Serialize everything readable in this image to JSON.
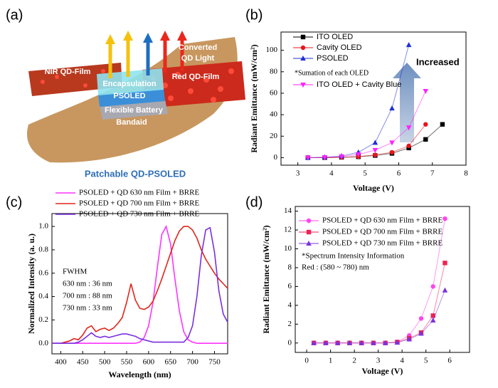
{
  "panel_labels": [
    "(a)",
    "(b)",
    "(c)",
    "(d)"
  ],
  "illustration": {
    "texts": [
      "NIR QD-Film",
      "Encapsulation",
      "PSOLED",
      "Flexible Battery",
      "Bandaid",
      "Red QD-Film",
      "Converted",
      "QD Light"
    ],
    "caption": "Patchable QD-PSOLED"
  },
  "chart_data": [
    {
      "type": "line",
      "xlabel": "Voltage (V)",
      "ylabel": "Radiant Emittance (mW/cm²)",
      "xlim": [
        2.5,
        8
      ],
      "xticks": [
        3,
        4,
        5,
        6,
        7,
        8
      ],
      "ylim": [
        -7,
        117
      ],
      "yticks": [
        0,
        20,
        40,
        60,
        80,
        100
      ],
      "x": [
        3.3,
        3.8,
        4.3,
        4.8,
        5.3,
        5.8,
        6.3,
        6.8,
        7.3
      ],
      "series": [
        {
          "name": "ITO OLED",
          "color": "#000000",
          "marker": "square",
          "values": [
            0,
            0,
            0.3,
            0.8,
            2,
            4,
            9,
            17,
            31
          ]
        },
        {
          "name": "Cavity OLED",
          "color": "#e8141c",
          "marker": "circle",
          "values": [
            0,
            0,
            0.3,
            1,
            2.5,
            5,
            11,
            31,
            null
          ]
        },
        {
          "name": "PSOLED",
          "color": "#1f2fd6",
          "marker": "triangle-up",
          "values": [
            0,
            0.5,
            1.5,
            5,
            14,
            46,
            105,
            null,
            null
          ]
        },
        {
          "name": "ITO OLED + Cavity Blue",
          "color": "#ff22ff",
          "marker": "triangle-down",
          "values": [
            0,
            0.3,
            1,
            3,
            7,
            14,
            28,
            62,
            null
          ]
        }
      ],
      "annotations": [
        "*Sumation of each OLED",
        "Increased"
      ]
    },
    {
      "type": "line",
      "xlabel": "Wavelength (nm)",
      "ylabel": "Normalized Intensity (a. u.)",
      "xlim": [
        380,
        780
      ],
      "xticks": [
        400,
        450,
        500,
        550,
        600,
        650,
        700,
        750
      ],
      "ylim": [
        -0.09,
        1.11
      ],
      "yticks": [
        {
          "value": 0,
          "label": "0.0"
        },
        0.2,
        0.4,
        0.6,
        0.8,
        {
          "value": 1,
          "label": "1.0"
        }
      ],
      "x": [
        380,
        390,
        400,
        410,
        420,
        430,
        440,
        450,
        460,
        470,
        480,
        490,
        500,
        510,
        520,
        530,
        540,
        550,
        560,
        570,
        580,
        590,
        600,
        610,
        620,
        630,
        640,
        650,
        660,
        670,
        680,
        690,
        700,
        710,
        720,
        730,
        740,
        750,
        760,
        770,
        780
      ],
      "series": [
        {
          "name": "PSOLED + QD 630 nm Film + BRRE",
          "color": "#ff33ff",
          "values": [
            0,
            0,
            0,
            0,
            0,
            0,
            0,
            0,
            0,
            0,
            0,
            0,
            0,
            0,
            0,
            0,
            0,
            0,
            0,
            0,
            0.01,
            0.05,
            0.15,
            0.35,
            0.65,
            0.93,
            1.0,
            0.85,
            0.55,
            0.28,
            0.1,
            0.03,
            0.01,
            0,
            0,
            0,
            0,
            0,
            0,
            0,
            0
          ]
        },
        {
          "name": "PSOLED + QD 700 nm Film + BRRE",
          "color": "#e0261b",
          "values": [
            0,
            0,
            0,
            0.01,
            0.02,
            0.04,
            0.03,
            0.07,
            0.13,
            0.15,
            0.1,
            0.12,
            0.13,
            0.11,
            0.13,
            0.17,
            0.22,
            0.35,
            0.51,
            0.37,
            0.3,
            0.29,
            0.31,
            0.36,
            0.45,
            0.55,
            0.66,
            0.77,
            0.88,
            0.96,
            1.0,
            1.0,
            0.97,
            0.9,
            0.8,
            0.72,
            0.66,
            0.6,
            0.55,
            0.51,
            0.47
          ]
        },
        {
          "name": "PSOLED + QD 730 nm Film + BRRE",
          "color": "#7a2fe0",
          "values": [
            0,
            0,
            0,
            0,
            0,
            0,
            0.01,
            0.03,
            0.06,
            0.09,
            0.06,
            0.05,
            0.06,
            0.05,
            0.06,
            0.07,
            0.08,
            0.08,
            0.07,
            0.06,
            0.04,
            0.03,
            0.02,
            0.01,
            0.01,
            0.01,
            0.01,
            0.01,
            0.01,
            0.01,
            0.01,
            0.05,
            0.15,
            0.4,
            0.75,
            0.97,
            0.99,
            0.78,
            0.45,
            0.25,
            0.18
          ]
        }
      ],
      "annotations": [
        "FWHM",
        "630 nm : 36 nm",
        "700 nm : 88 nm",
        "730 nm : 33 nm"
      ]
    },
    {
      "type": "line",
      "xlabel": "Voltage (V)",
      "ylabel": "Radiant Emittance (mW/cm²)",
      "xlim": [
        -0.48,
        6.83
      ],
      "xticks": [
        0,
        1,
        2,
        3,
        4,
        5,
        6
      ],
      "ylim": [
        -1,
        14.5
      ],
      "yticks": [
        0,
        2,
        4,
        6,
        8,
        10,
        12,
        14
      ],
      "x": [
        0.3,
        0.8,
        1.3,
        1.8,
        2.3,
        2.8,
        3.3,
        3.8,
        4.3,
        4.8,
        5.3,
        5.8
      ],
      "series": [
        {
          "name": "PSOLED + QD 630 nm Film + BRRE",
          "color": "#ff44ee",
          "marker": "circle",
          "values": [
            0,
            0,
            0,
            0,
            0,
            0,
            0,
            0.1,
            0.8,
            2.6,
            6,
            13.2
          ]
        },
        {
          "name": "PSOLED + QD 700 nm Film + BRRE",
          "color": "#ee2255",
          "marker": "square",
          "values": [
            0,
            0,
            0,
            0,
            0,
            0,
            0,
            0.1,
            0.5,
            1.1,
            2.9,
            8.5
          ]
        },
        {
          "name": "PSOLED + QD 730 nm Film + BRRE",
          "color": "#7a33dd",
          "marker": "triangle-up",
          "values": [
            0,
            0,
            0,
            0,
            0,
            0,
            0,
            0.05,
            0.4,
            1,
            2.4,
            5.6
          ]
        }
      ],
      "annotations": [
        "*Spectrum Intensity Information",
        "Red : (580 ~ 780) nm"
      ]
    }
  ]
}
